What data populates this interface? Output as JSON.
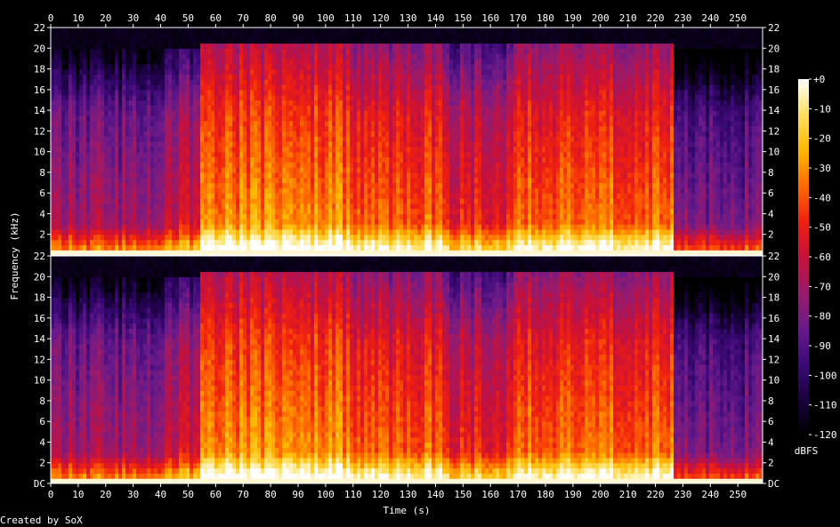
{
  "chart_data": {
    "type": "heatmap",
    "subtype": "spectrogram",
    "xlabel": "Time (s)",
    "ylabel": "Frequency (kHz)",
    "x_ticks": [
      0,
      10,
      20,
      30,
      40,
      50,
      60,
      70,
      80,
      90,
      100,
      110,
      120,
      130,
      140,
      150,
      160,
      170,
      180,
      190,
      200,
      210,
      220,
      230,
      240,
      250
    ],
    "xlim": [
      0,
      259
    ],
    "channels": [
      {
        "y_ticks": [
          "2",
          "4",
          "6",
          "8",
          "10",
          "12",
          "14",
          "16",
          "18",
          "20",
          "22"
        ],
        "ylim": [
          0,
          22
        ]
      },
      {
        "y_ticks": [
          "DC",
          "2",
          "4",
          "6",
          "8",
          "10",
          "12",
          "14",
          "16",
          "18",
          "20",
          "22"
        ],
        "ylim": [
          0,
          22
        ]
      }
    ],
    "colorbar": {
      "label": "dBFS",
      "ticks": [
        "+0",
        "-10",
        "-20",
        "-30",
        "-40",
        "-50",
        "-60",
        "-70",
        "-80",
        "-90",
        "-100",
        "-110",
        "-120"
      ],
      "range": [
        -120,
        0
      ],
      "colors": [
        "#000000",
        "#1a0040",
        "#3d0a78",
        "#6a1a8a",
        "#9a1a6a",
        "#c8103a",
        "#f02010",
        "#ff6a00",
        "#ffb800",
        "#ffe060",
        "#ffffff"
      ]
    },
    "segments": [
      {
        "t": [
          0,
          42
        ],
        "cutoff_khz": 20,
        "level": 0.45
      },
      {
        "t": [
          42,
          55
        ],
        "cutoff_khz": 20.1,
        "level": 0.55
      },
      {
        "t": [
          55,
          110
        ],
        "cutoff_khz": 20.3,
        "level": 0.78
      },
      {
        "t": [
          110,
          142
        ],
        "cutoff_khz": 20.3,
        "level": 0.72
      },
      {
        "t": [
          142,
          168
        ],
        "cutoff_khz": 20.3,
        "level": 0.62
      },
      {
        "t": [
          168,
          226
        ],
        "cutoff_khz": 20.3,
        "level": 0.74
      },
      {
        "t": [
          226,
          259
        ],
        "cutoff_khz": 20,
        "level": 0.38
      }
    ]
  },
  "footer": {
    "credit": "Created by SoX"
  }
}
